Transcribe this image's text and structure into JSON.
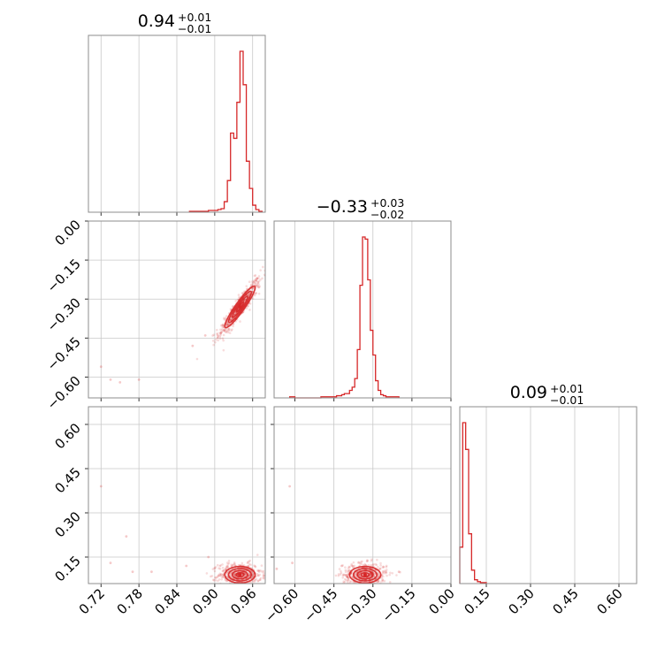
{
  "chart_data": {
    "type": "corner",
    "color": "#d62728",
    "parameters": [
      {
        "title_value": "0.94",
        "title_plus": "+0.01",
        "title_minus": "−0.01",
        "range": [
          0.7,
          0.98
        ],
        "ticks": [
          0.72,
          0.78,
          0.84,
          0.9,
          0.96
        ],
        "tick_labels": [
          "0.72",
          "0.78",
          "0.84",
          "0.90",
          "0.96"
        ],
        "histogram": {
          "bin_edges": [
            0.86,
            0.87,
            0.88,
            0.89,
            0.9,
            0.905,
            0.91,
            0.915,
            0.92,
            0.925,
            0.93,
            0.935,
            0.94,
            0.945,
            0.95,
            0.955,
            0.96,
            0.965,
            0.97,
            0.975
          ],
          "counts": [
            1,
            1,
            1,
            2,
            2,
            3,
            4,
            12,
            36,
            90,
            84,
            125,
            183,
            145,
            58,
            27,
            8,
            3,
            1
          ]
        }
      },
      {
        "title_value": "−0.33",
        "title_plus": "+0.03",
        "title_minus": "−0.02",
        "range": [
          -0.68,
          0.0
        ],
        "ticks": [
          -0.6,
          -0.45,
          -0.3,
          -0.15,
          0.0
        ],
        "tick_labels": [
          "−0.60",
          "−0.45",
          "−0.30",
          "−0.15",
          "0.00"
        ],
        "histogram": {
          "bin_edges": [
            -0.62,
            -0.6,
            -0.5,
            -0.48,
            -0.46,
            -0.44,
            -0.42,
            -0.41,
            -0.4,
            -0.39,
            -0.38,
            -0.37,
            -0.36,
            -0.35,
            -0.34,
            -0.33,
            -0.32,
            -0.31,
            -0.3,
            -0.29,
            -0.28,
            -0.27,
            -0.26,
            -0.25,
            -0.23,
            -0.2
          ],
          "counts": [
            1,
            0,
            1,
            1,
            1,
            2,
            3,
            4,
            4,
            7,
            10,
            18,
            45,
            105,
            150,
            148,
            110,
            63,
            40,
            16,
            7,
            3,
            2,
            1,
            1
          ]
        }
      },
      {
        "title_value": "0.09",
        "title_plus": "+0.01",
        "title_minus": "−0.01",
        "range": [
          0.06,
          0.66
        ],
        "ticks": [
          0.15,
          0.3,
          0.45,
          0.6
        ],
        "tick_labels": [
          "0.15",
          "0.30",
          "0.45",
          "0.60"
        ],
        "histogram": {
          "bin_edges": [
            0.06,
            0.07,
            0.08,
            0.09,
            0.1,
            0.11,
            0.12,
            0.13,
            0.14,
            0.15
          ],
          "counts": [
            38,
            168,
            140,
            52,
            14,
            4,
            2,
            1,
            1
          ]
        }
      }
    ],
    "scatter_panels": [
      {
        "x_param": 0,
        "y_param": 1,
        "cluster": {
          "cx": 0.94,
          "cy": -0.33,
          "sx": 0.012,
          "sy": 0.04,
          "rho": 0.93
        },
        "outliers": [
          [
            0.72,
            -0.56
          ],
          [
            0.735,
            -0.61
          ],
          [
            0.75,
            -0.62
          ],
          [
            0.78,
            -0.61
          ],
          [
            0.865,
            -0.48
          ],
          [
            0.885,
            -0.44
          ]
        ]
      },
      {
        "x_param": 0,
        "y_param": 2,
        "cluster": {
          "cx": 0.94,
          "cy": 0.09,
          "sx": 0.012,
          "sy": 0.014,
          "rho": 0.0
        },
        "outliers": [
          [
            0.72,
            0.39
          ],
          [
            0.735,
            0.13
          ],
          [
            0.77,
            0.1
          ],
          [
            0.76,
            0.22
          ],
          [
            0.8,
            0.1
          ],
          [
            0.855,
            0.12
          ],
          [
            0.89,
            0.15
          ]
        ]
      },
      {
        "x_param": 1,
        "y_param": 2,
        "cluster": {
          "cx": -0.33,
          "cy": 0.09,
          "sx": 0.03,
          "sy": 0.014,
          "rho": 0.0
        },
        "outliers": [
          [
            -0.62,
            0.39
          ],
          [
            -0.61,
            0.13
          ],
          [
            -0.67,
            0.11
          ],
          [
            -0.42,
            0.12
          ],
          [
            -0.25,
            0.1
          ],
          [
            -0.2,
            0.1
          ]
        ]
      }
    ]
  }
}
